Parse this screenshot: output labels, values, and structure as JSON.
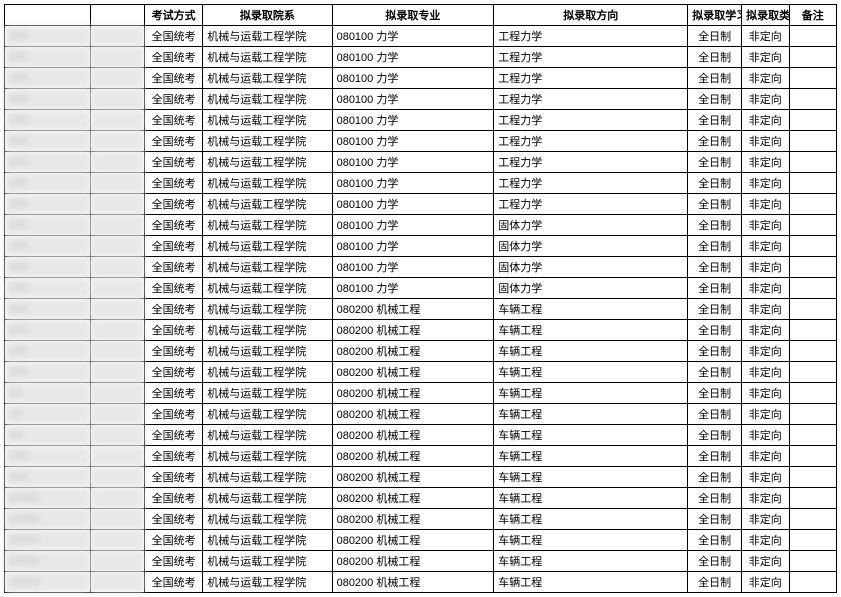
{
  "columns": {
    "blur1_width": 80,
    "blur2_width": 50,
    "exam": "考试方式",
    "dept": "拟录取院系",
    "major": "拟录取专业",
    "direction": "拟录取方向",
    "study": "拟录取学习方式",
    "category": "拟录取类别",
    "remark": "备注"
  },
  "rows": [
    {
      "b1": "105",
      "b2": "",
      "exam": "全国统考",
      "dept": "机械与运载工程学院",
      "major": "080100 力学",
      "dir": "工程力学",
      "study": "全日制",
      "cat": "非定向",
      "remark": ""
    },
    {
      "b1": "105",
      "b2": "",
      "exam": "全国统考",
      "dept": "机械与运载工程学院",
      "major": "080100 力学",
      "dir": "工程力学",
      "study": "全日制",
      "cat": "非定向",
      "remark": ""
    },
    {
      "b1": "105",
      "b2": "",
      "exam": "全国统考",
      "dept": "机械与运载工程学院",
      "major": "080100 力学",
      "dir": "工程力学",
      "study": "全日制",
      "cat": "非定向",
      "remark": ""
    },
    {
      "b1": "105",
      "b2": "",
      "exam": "全国统考",
      "dept": "机械与运载工程学院",
      "major": "080100 力学",
      "dir": "工程力学",
      "study": "全日制",
      "cat": "非定向",
      "remark": ""
    },
    {
      "b1": "105",
      "b2": "",
      "exam": "全国统考",
      "dept": "机械与运载工程学院",
      "major": "080100 力学",
      "dir": "工程力学",
      "study": "全日制",
      "cat": "非定向",
      "remark": ""
    },
    {
      "b1": "105",
      "b2": "",
      "exam": "全国统考",
      "dept": "机械与运载工程学院",
      "major": "080100 力学",
      "dir": "工程力学",
      "study": "全日制",
      "cat": "非定向",
      "remark": ""
    },
    {
      "b1": "105",
      "b2": "",
      "exam": "全国统考",
      "dept": "机械与运载工程学院",
      "major": "080100 力学",
      "dir": "工程力学",
      "study": "全日制",
      "cat": "非定向",
      "remark": ""
    },
    {
      "b1": "105",
      "b2": "",
      "exam": "全国统考",
      "dept": "机械与运载工程学院",
      "major": "080100 力学",
      "dir": "工程力学",
      "study": "全日制",
      "cat": "非定向",
      "remark": ""
    },
    {
      "b1": "105",
      "b2": "",
      "exam": "全国统考",
      "dept": "机械与运载工程学院",
      "major": "080100 力学",
      "dir": "工程力学",
      "study": "全日制",
      "cat": "非定向",
      "remark": ""
    },
    {
      "b1": "105",
      "b2": "",
      "exam": "全国统考",
      "dept": "机械与运载工程学院",
      "major": "080100 力学",
      "dir": "固体力学",
      "study": "全日制",
      "cat": "非定向",
      "remark": ""
    },
    {
      "b1": "105",
      "b2": "",
      "exam": "全国统考",
      "dept": "机械与运载工程学院",
      "major": "080100 力学",
      "dir": "固体力学",
      "study": "全日制",
      "cat": "非定向",
      "remark": ""
    },
    {
      "b1": "105",
      "b2": "",
      "exam": "全国统考",
      "dept": "机械与运载工程学院",
      "major": "080100 力学",
      "dir": "固体力学",
      "study": "全日制",
      "cat": "非定向",
      "remark": ""
    },
    {
      "b1": "105",
      "b2": "",
      "exam": "全国统考",
      "dept": "机械与运载工程学院",
      "major": "080100 力学",
      "dir": "固体力学",
      "study": "全日制",
      "cat": "非定向",
      "remark": ""
    },
    {
      "b1": "105",
      "b2": "",
      "exam": "全国统考",
      "dept": "机械与运载工程学院",
      "major": "080200 机械工程",
      "dir": "车辆工程",
      "study": "全日制",
      "cat": "非定向",
      "remark": ""
    },
    {
      "b1": "105",
      "b2": "",
      "exam": "全国统考",
      "dept": "机械与运载工程学院",
      "major": "080200 机械工程",
      "dir": "车辆工程",
      "study": "全日制",
      "cat": "非定向",
      "remark": ""
    },
    {
      "b1": "105",
      "b2": "",
      "exam": "全国统考",
      "dept": "机械与运载工程学院",
      "major": "080200 机械工程",
      "dir": "车辆工程",
      "study": "全日制",
      "cat": "非定向",
      "remark": ""
    },
    {
      "b1": "105",
      "b2": "",
      "exam": "全国统考",
      "dept": "机械与运载工程学院",
      "major": "080200 机械工程",
      "dir": "车辆工程",
      "study": "全日制",
      "cat": "非定向",
      "remark": ""
    },
    {
      "b1": "10",
      "b2": "",
      "exam": "全国统考",
      "dept": "机械与运载工程学院",
      "major": "080200 机械工程",
      "dir": "车辆工程",
      "study": "全日制",
      "cat": "非定向",
      "remark": ""
    },
    {
      "b1": "10",
      "b2": "",
      "exam": "全国统考",
      "dept": "机械与运载工程学院",
      "major": "080200 机械工程",
      "dir": "车辆工程",
      "study": "全日制",
      "cat": "非定向",
      "remark": ""
    },
    {
      "b1": "10",
      "b2": "",
      "exam": "全国统考",
      "dept": "机械与运载工程学院",
      "major": "080200 机械工程",
      "dir": "车辆工程",
      "study": "全日制",
      "cat": "非定向",
      "remark": ""
    },
    {
      "b1": "105",
      "b2": "",
      "exam": "全国统考",
      "dept": "机械与运载工程学院",
      "major": "080200 机械工程",
      "dir": "车辆工程",
      "study": "全日制",
      "cat": "非定向",
      "remark": ""
    },
    {
      "b1": "105",
      "b2": "",
      "exam": "全国统考",
      "dept": "机械与运载工程学院",
      "major": "080200 机械工程",
      "dir": "车辆工程",
      "study": "全日制",
      "cat": "非定向",
      "remark": ""
    },
    {
      "b1": "10532",
      "b2": "",
      "exam": "全国统考",
      "dept": "机械与运载工程学院",
      "major": "080200 机械工程",
      "dir": "车辆工程",
      "study": "全日制",
      "cat": "非定向",
      "remark": ""
    },
    {
      "b1": "10532",
      "b2": "",
      "exam": "全国统考",
      "dept": "机械与运载工程学院",
      "major": "080200 机械工程",
      "dir": "车辆工程",
      "study": "全日制",
      "cat": "非定向",
      "remark": ""
    },
    {
      "b1": "10532",
      "b2": "",
      "exam": "全国统考",
      "dept": "机械与运载工程学院",
      "major": "080200 机械工程",
      "dir": "车辆工程",
      "study": "全日制",
      "cat": "非定向",
      "remark": ""
    },
    {
      "b1": "10532",
      "b2": "",
      "exam": "全国统考",
      "dept": "机械与运载工程学院",
      "major": "080200 机械工程",
      "dir": "车辆工程",
      "study": "全日制",
      "cat": "非定向",
      "remark": ""
    },
    {
      "b1": "10532",
      "b2": "",
      "exam": "全国统考",
      "dept": "机械与运载工程学院",
      "major": "080200 机械工程",
      "dir": "车辆工程",
      "study": "全日制",
      "cat": "非定向",
      "remark": ""
    }
  ]
}
